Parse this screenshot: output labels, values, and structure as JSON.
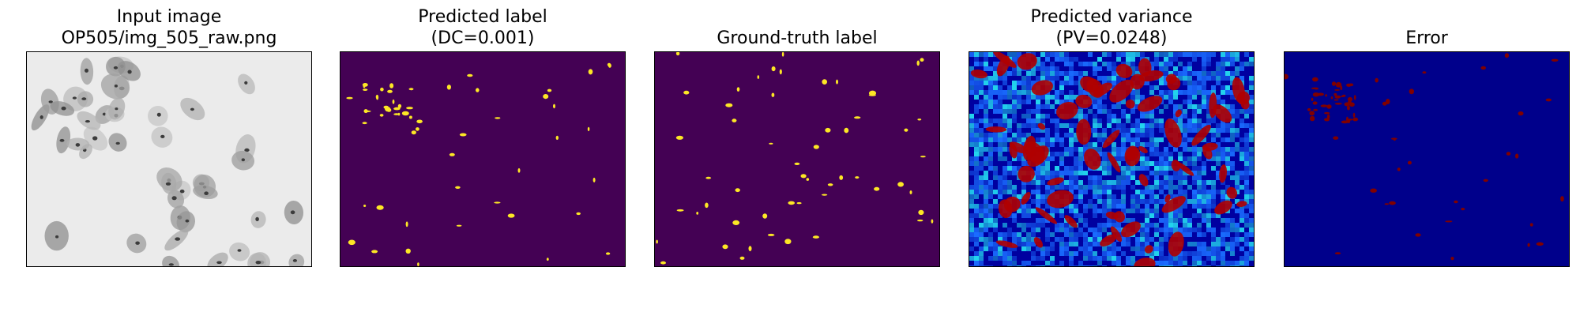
{
  "panels": [
    {
      "title": [
        "Input image",
        "OP505/img_505_raw.png"
      ],
      "kind": "cells"
    },
    {
      "title": [
        "Predicted label",
        "(DC=0.001)"
      ],
      "kind": "pred"
    },
    {
      "title": [
        "Ground-truth label"
      ],
      "kind": "gt"
    },
    {
      "title": [
        "Predicted variance",
        "(PV=0.0248)"
      ],
      "kind": "variance"
    },
    {
      "title": [
        "Error"
      ],
      "kind": "error"
    }
  ],
  "colors": {
    "label_background": "#440154",
    "label_foreground": "#fde725",
    "jet_low": "#0000a0",
    "jet_mid": "#1a6cff",
    "jet_cyan": "#22d4ee",
    "jet_high": "#b00000",
    "error_background": "#00008b",
    "error_foreground": "#800000",
    "input_background": "#ebebeb",
    "cell_gray": "#9a9a9a",
    "nucleus_gray": "#3c3c3c"
  }
}
